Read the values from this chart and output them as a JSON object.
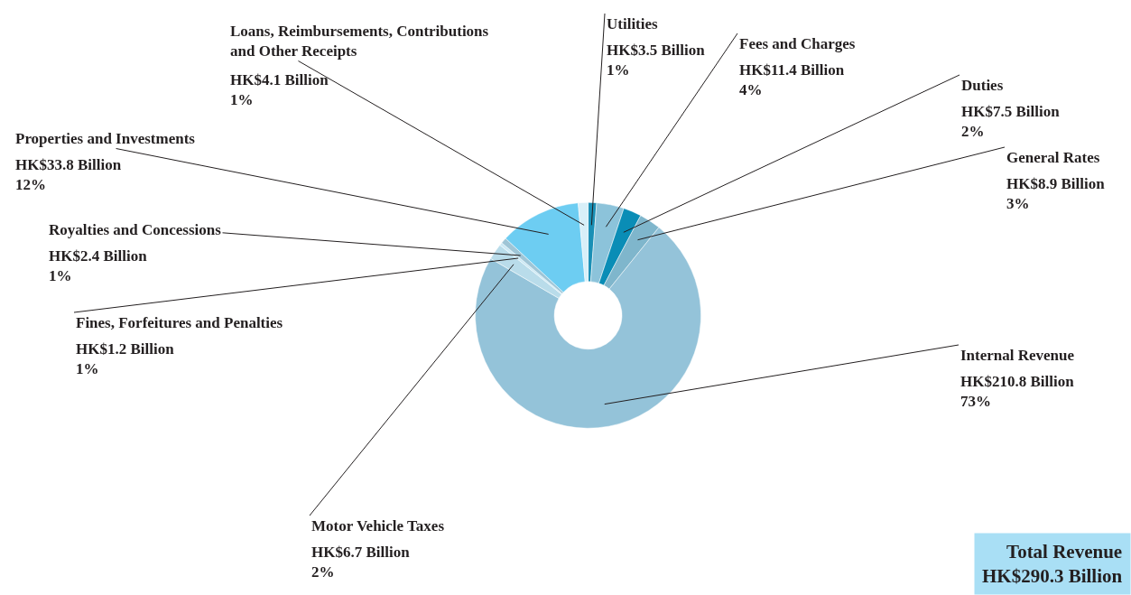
{
  "chart_data": {
    "type": "donut",
    "categories": [
      "Utilities",
      "Fees and Charges",
      "Duties",
      "General Rates",
      "Internal Revenue",
      "Motor Vehicle Taxes",
      "Fines, Forfeitures and Penalties",
      "Royalties and Concessions",
      "Properties and Investments",
      "Loans, Reimbursements, Contributions and Other Receipts"
    ],
    "values": [
      3.5,
      11.4,
      7.5,
      8.9,
      210.8,
      6.7,
      1.2,
      2.4,
      33.8,
      4.1
    ],
    "value_labels": [
      "HK$3.5 Billion\n1%",
      "HK$11.4 Billion\n4%",
      "HK$7.5 Billion\n2%",
      "HK$8.9 Billion\n3%",
      "HK$210.8 Billion\n73%",
      "HK$6.7 Billion\n2%",
      "HK$1.2 Billion\n1%",
      "HK$2.4 Billion\n1%",
      "HK$33.8 Billion\n12%",
      "HK$4.1 Billion\n1%"
    ],
    "colors": [
      "#1a8fb5",
      "#8cc3da",
      "#0a8db6",
      "#7fb6cc",
      "#94c3d9",
      "#b9dcea",
      "#cbe9f5",
      "#9fc5d6",
      "#6dcdf2",
      "#d8eff8"
    ],
    "annotations": [
      "Total Revenue\nHK$290.3 Billion"
    ]
  }
}
